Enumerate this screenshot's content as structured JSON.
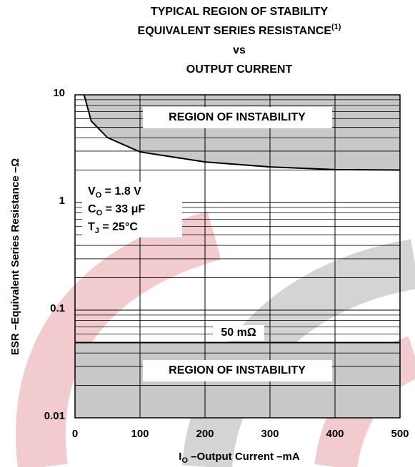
{
  "chart_data": {
    "type": "line",
    "title": {
      "line1": "TYPICAL REGION OF STABILITY",
      "line2": {
        "text": "EQUIVALENT SERIES RESISTANCE",
        "sup": "(1)"
      },
      "line3": "vs",
      "line4": "OUTPUT CURRENT"
    },
    "y_label": "ESR –Equivalent Series Resistance –Ω",
    "x_label": {
      "symbol": "I",
      "sub": "O",
      "rest": " –Output Current –mA"
    },
    "log_scale_y": true,
    "grid": true,
    "xlim": [
      0,
      500
    ],
    "xticks": [
      0,
      100,
      200,
      300,
      400,
      500
    ],
    "ylim": [
      0.01,
      10
    ],
    "yticks": [
      0.01,
      0.1,
      1,
      10
    ],
    "series": [
      {
        "color": "#000000",
        "fill": "#c8c8c8",
        "x": [
          14,
          25,
          50,
          100,
          200,
          300,
          400,
          500
        ],
        "values": [
          10,
          5.7,
          4.0,
          2.95,
          2.38,
          2.14,
          2.02,
          2.0
        ]
      }
    ],
    "reference_line": {
      "value": 0.05,
      "label": "50 mΩ",
      "color": "#000000",
      "fill": "#c8c8c8"
    },
    "annotations": [
      "REGION OF INSTABILITY",
      "REGION OF INSTABILITY"
    ],
    "conditions": [
      {
        "symbol": "V",
        "sub": "O",
        "rest": " = 1.8 V"
      },
      {
        "symbol": "C",
        "sub": "O",
        "rest": " = 33 μF"
      },
      {
        "symbol": "T",
        "sub": "J",
        "rest": " = 25°C"
      }
    ]
  }
}
